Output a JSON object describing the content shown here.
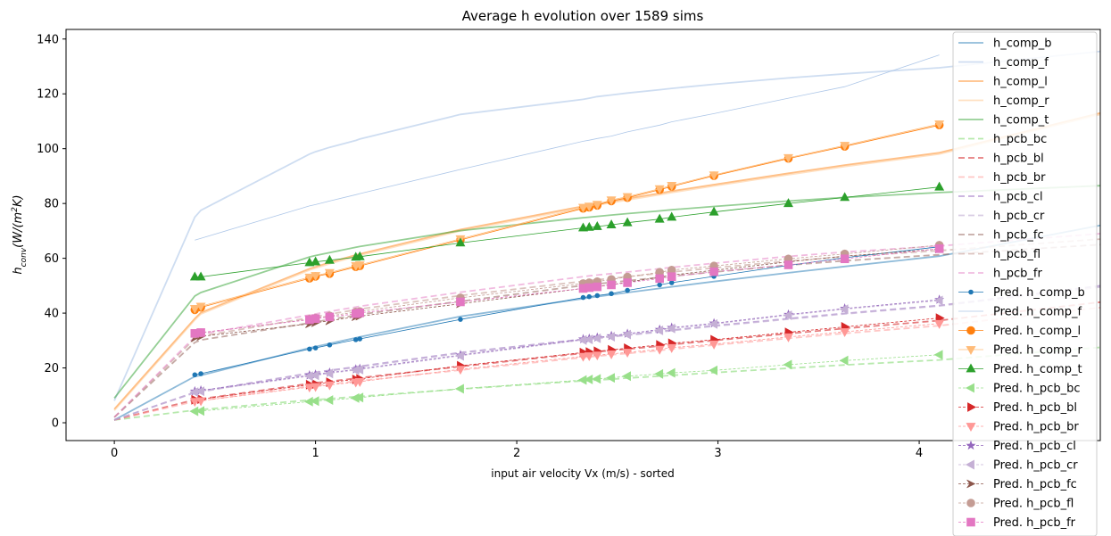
{
  "chart_data": {
    "type": "line",
    "title": "Average h evolution over 1589 sims",
    "xlabel": "input air velocity Vx (m/s) - sorted",
    "ylabel_html": "h<tspan baseline-shift='sub' font-size='9'>conv</tspan>(W/(m<tspan baseline-shift='super' font-size='9'>2</tspan>K)",
    "ylabel_plain": "h_conv(W/(m^2K)",
    "xlim": [
      -0.24,
      4.9
    ],
    "ylim": [
      -6.5,
      143.5
    ],
    "xticks": [
      0,
      1,
      2,
      3,
      4
    ],
    "yticks": [
      0,
      20,
      40,
      60,
      80,
      100,
      120,
      140
    ],
    "grid": false,
    "legend_position": "top-right",
    "pred_x": [
      0.4,
      0.43,
      0.97,
      1.0,
      1.07,
      1.2,
      1.22,
      1.72,
      2.33,
      2.36,
      2.4,
      2.47,
      2.55,
      2.71,
      2.77,
      2.98,
      3.35,
      3.63,
      4.1
    ],
    "fit_curves": [
      {
        "name": "h_comp_b",
        "color": "#1f77b4",
        "opacity": 0.5,
        "dash": "",
        "width": 1.8,
        "y": [
          1,
          16.9,
          17.3,
          27.3,
          27.8,
          28.9,
          31,
          31.3,
          38.8,
          45.3,
          45.6,
          46,
          46.7,
          47.5,
          49,
          49.6,
          51.5,
          54.7,
          57,
          60.8,
          72
        ]
      },
      {
        "name": "h_comp_f",
        "color": "#aec7e8",
        "opacity": 0.6,
        "dash": "",
        "width": 1.8,
        "y": [
          8,
          75,
          77.5,
          98,
          98.9,
          100.5,
          103,
          103.5,
          112.5,
          118,
          118.4,
          119,
          119.6,
          120.3,
          121.5,
          122,
          123.5,
          125.8,
          127.3,
          129.5,
          135.5
        ]
      },
      {
        "name": "h_comp_l",
        "color": "#ff7f0e",
        "opacity": 0.5,
        "dash": "",
        "width": 1.8,
        "y": [
          5,
          38,
          40.2,
          56.2,
          56.9,
          58.5,
          61.2,
          61.6,
          70.5,
          79,
          79.4,
          79.9,
          80.8,
          81.8,
          83.7,
          84.5,
          86.9,
          91,
          94,
          98.5,
          113
        ]
      },
      {
        "name": "h_comp_r",
        "color": "#ffbb78",
        "opacity": 0.45,
        "dash": "",
        "width": 1.8,
        "y": [
          4.5,
          37.5,
          39.7,
          55.7,
          56.4,
          58,
          60.7,
          61.1,
          70,
          78.5,
          78.9,
          79.4,
          80.3,
          81.3,
          83.2,
          84,
          86.4,
          90.5,
          93.5,
          98,
          112.5
        ]
      },
      {
        "name": "h_comp_t",
        "color": "#2ca02c",
        "opacity": 0.5,
        "dash": "",
        "width": 1.8,
        "y": [
          9,
          46.2,
          47.5,
          60.5,
          61,
          62.1,
          64,
          64.3,
          70.1,
          74.8,
          75,
          75.3,
          75.8,
          76.3,
          77.3,
          77.7,
          78.9,
          80.9,
          82.2,
          84,
          86.5
        ]
      },
      {
        "name": "h_pcb_bc",
        "color": "#98df8a",
        "opacity": 0.7,
        "dash": "7,4",
        "width": 1.8,
        "y": [
          1,
          4.6,
          4.8,
          8.3,
          8.4,
          8.8,
          9.5,
          9.6,
          12.3,
          15.3,
          15.4,
          15.6,
          15.9,
          16.3,
          17,
          17.3,
          18.3,
          19.9,
          21.1,
          22.9,
          27.5
        ]
      },
      {
        "name": "h_pcb_bl",
        "color": "#d62728",
        "opacity": 0.6,
        "dash": "7,4",
        "width": 1.8,
        "y": [
          1,
          8.4,
          8.7,
          14.3,
          14.6,
          15.1,
          16.2,
          16.4,
          20.5,
          25.4,
          25.6,
          25.9,
          26.4,
          26.9,
          28,
          28.5,
          30,
          32.5,
          34.4,
          37.3,
          44
        ]
      },
      {
        "name": "h_pcb_br",
        "color": "#ff9896",
        "opacity": 0.55,
        "dash": "7,4",
        "width": 1.8,
        "y": [
          1,
          7.8,
          8.1,
          13.3,
          13.6,
          14.1,
          15.1,
          15.3,
          19.2,
          23.8,
          24,
          24.3,
          24.8,
          25.3,
          26.4,
          26.9,
          28.3,
          30.8,
          32.6,
          35.4,
          42
        ]
      },
      {
        "name": "h_pcb_cl",
        "color": "#9467bd",
        "opacity": 0.55,
        "dash": "7,4",
        "width": 1.8,
        "y": [
          1,
          11.1,
          11.5,
          18.1,
          18.4,
          19.1,
          20.4,
          20.6,
          25.6,
          30.5,
          30.7,
          31,
          31.5,
          32.1,
          33.3,
          33.8,
          35.4,
          38,
          39.9,
          42.8,
          50
        ]
      },
      {
        "name": "h_pcb_cr",
        "color": "#c5b0d5",
        "opacity": 0.65,
        "dash": "7,4",
        "width": 1.8,
        "y": [
          1,
          10.9,
          11.3,
          17.9,
          18.2,
          18.9,
          20.2,
          20.4,
          25.4,
          30.3,
          30.5,
          30.8,
          31.3,
          31.9,
          33.1,
          33.6,
          35.2,
          37.8,
          39.7,
          42.6,
          49.5
        ]
      },
      {
        "name": "h_pcb_fc",
        "color": "#8c564b",
        "opacity": 0.5,
        "dash": "7,4",
        "width": 1.8,
        "y": [
          2,
          29.3,
          30.2,
          36.4,
          36.8,
          37.7,
          39.2,
          39.5,
          44.3,
          50.1,
          50.4,
          50.7,
          51.2,
          51.8,
          53,
          53.5,
          55,
          57.5,
          59.1,
          61.3,
          65
        ]
      },
      {
        "name": "h_pcb_fl",
        "color": "#c49c94",
        "opacity": 0.6,
        "dash": "7,4",
        "width": 1.8,
        "y": [
          2,
          30.7,
          31.6,
          38.3,
          38.7,
          39.6,
          41.2,
          41.5,
          46.4,
          51.6,
          51.9,
          52.2,
          52.7,
          53.3,
          54.5,
          55,
          56.5,
          59,
          60.6,
          62.8,
          67
        ]
      },
      {
        "name": "h_pcb_fr",
        "color": "#e377c2",
        "opacity": 0.5,
        "dash": "7,4",
        "width": 1.8,
        "y": [
          2,
          31.4,
          32.3,
          39.3,
          39.7,
          40.6,
          42.2,
          42.5,
          47.6,
          53.3,
          53.6,
          53.9,
          54.4,
          55,
          56.2,
          56.7,
          58.2,
          60.7,
          62.3,
          64.5,
          69
        ]
      }
    ],
    "pred_series": [
      {
        "name": "Pred. h_comp_b",
        "color": "#1f77b4",
        "marker": "dot",
        "dash": "",
        "y": [
          17.5,
          17.9,
          26.9,
          27.3,
          28.4,
          30.3,
          30.6,
          37.7,
          45.7,
          46,
          46.4,
          47.1,
          48.3,
          50.3,
          51.1,
          53.4,
          57.4,
          60.2,
          64.2
        ]
      },
      {
        "name": "Pred. h_comp_f",
        "color": "#aec7e8",
        "marker": "none",
        "dash": "",
        "y": [
          66.6,
          67.3,
          79.1,
          79.6,
          80.9,
          83.2,
          83.6,
          92.4,
          102.7,
          103.1,
          103.7,
          104.6,
          106.1,
          108.6,
          109.8,
          112.8,
          118.4,
          122.6,
          134.2
        ]
      },
      {
        "name": "Pred. h_comp_l",
        "color": "#ff7f0e",
        "marker": "circle",
        "dash": "",
        "y": [
          41.2,
          42.1,
          52.7,
          53.4,
          54.4,
          56.9,
          57.2,
          66.7,
          78.2,
          78.6,
          79.3,
          80.9,
          82.1,
          85,
          86.2,
          90.1,
          96.4,
          100.8,
          108.6
        ]
      },
      {
        "name": "Pred. h_comp_r",
        "color": "#ffbb78",
        "marker": "tri-down",
        "dash": "",
        "y": [
          41.7,
          42.5,
          53.1,
          53.7,
          54.8,
          57.3,
          57.6,
          67.1,
          78.6,
          79,
          79.7,
          81.3,
          82.5,
          85.4,
          86.6,
          90.4,
          96.7,
          101.2,
          109
        ]
      },
      {
        "name": "Pred. h_comp_t",
        "color": "#2ca02c",
        "marker": "tri-up",
        "dash": "",
        "y": [
          53.2,
          53.2,
          58.4,
          58.7,
          59.3,
          60.4,
          60.6,
          65.6,
          71.1,
          71.3,
          71.6,
          72.2,
          73,
          74.3,
          75,
          76.9,
          80,
          82.2,
          86
        ]
      },
      {
        "name": "Pred. h_pcb_bc",
        "color": "#98df8a",
        "marker": "tri-left",
        "dash": "3,2",
        "y": [
          4.2,
          4.3,
          7.7,
          7.9,
          8.3,
          9,
          9.2,
          12.4,
          15.6,
          15.8,
          16,
          16.4,
          17,
          17.8,
          18.2,
          19.1,
          21.2,
          22.7,
          24.8
        ]
      },
      {
        "name": "Pred. h_pcb_bl",
        "color": "#d62728",
        "marker": "tri-right",
        "dash": "3,2",
        "y": [
          8.4,
          8.6,
          13.9,
          14.1,
          14.8,
          15.8,
          16,
          20.8,
          25.6,
          25.8,
          26.1,
          26.6,
          27.2,
          28.4,
          29,
          30.3,
          33,
          35,
          38.2
        ]
      },
      {
        "name": "Pred. h_pcb_br",
        "color": "#ff9896",
        "marker": "tri-down",
        "dash": "3,2",
        "y": [
          7.8,
          8,
          13,
          13.2,
          13.8,
          14.8,
          15,
          19.5,
          24.2,
          24.4,
          24.7,
          25.1,
          25.7,
          26.8,
          27.4,
          28.7,
          31.3,
          33.2,
          36.2
        ]
      },
      {
        "name": "Pred. h_pcb_cl",
        "color": "#9467bd",
        "marker": "star",
        "dash": "3,2",
        "y": [
          11.5,
          11.8,
          17.3,
          17.6,
          18.3,
          19.5,
          19.7,
          24.7,
          30.5,
          30.7,
          31.1,
          31.7,
          32.5,
          34,
          34.7,
          36.3,
          39.5,
          41.7,
          44.9
        ]
      },
      {
        "name": "Pred. h_pcb_cr",
        "color": "#c5b0d5",
        "marker": "tri-left",
        "dash": "3,2",
        "y": [
          11.2,
          11.5,
          17,
          17.3,
          18,
          19.2,
          19.4,
          24.4,
          30.2,
          30.4,
          30.8,
          31.4,
          32.2,
          33.7,
          34.4,
          36,
          39.2,
          41.4,
          44.6
        ]
      },
      {
        "name": "Pred. h_pcb_fc",
        "color": "#8c564b",
        "marker": "arrow",
        "dash": "3,2",
        "y": [
          31,
          31.5,
          36.1,
          36.5,
          37.2,
          38.7,
          38.9,
          43.4,
          49,
          49.3,
          49.7,
          50.4,
          51.3,
          53.1,
          53.9,
          55.6,
          58.7,
          60.8,
          63.4
        ]
      },
      {
        "name": "Pred. h_pcb_fl",
        "color": "#c49c94",
        "marker": "circle",
        "dash": "3,2",
        "y": [
          32.4,
          32.8,
          37.8,
          38.2,
          39,
          40.4,
          40.6,
          45.6,
          50.8,
          51.1,
          51.5,
          52.3,
          53.2,
          54.9,
          55.7,
          57.2,
          59.8,
          61.6,
          64.8
        ]
      },
      {
        "name": "Pred. h_pcb_fr",
        "color": "#e377c2",
        "marker": "square",
        "dash": "3,2",
        "y": [
          32.6,
          32.9,
          37.6,
          38,
          38.6,
          39.8,
          40.1,
          44.1,
          49,
          49.3,
          49.6,
          50.3,
          51.1,
          52.6,
          53.3,
          55.1,
          57.6,
          59.8,
          63.5
        ]
      }
    ]
  }
}
